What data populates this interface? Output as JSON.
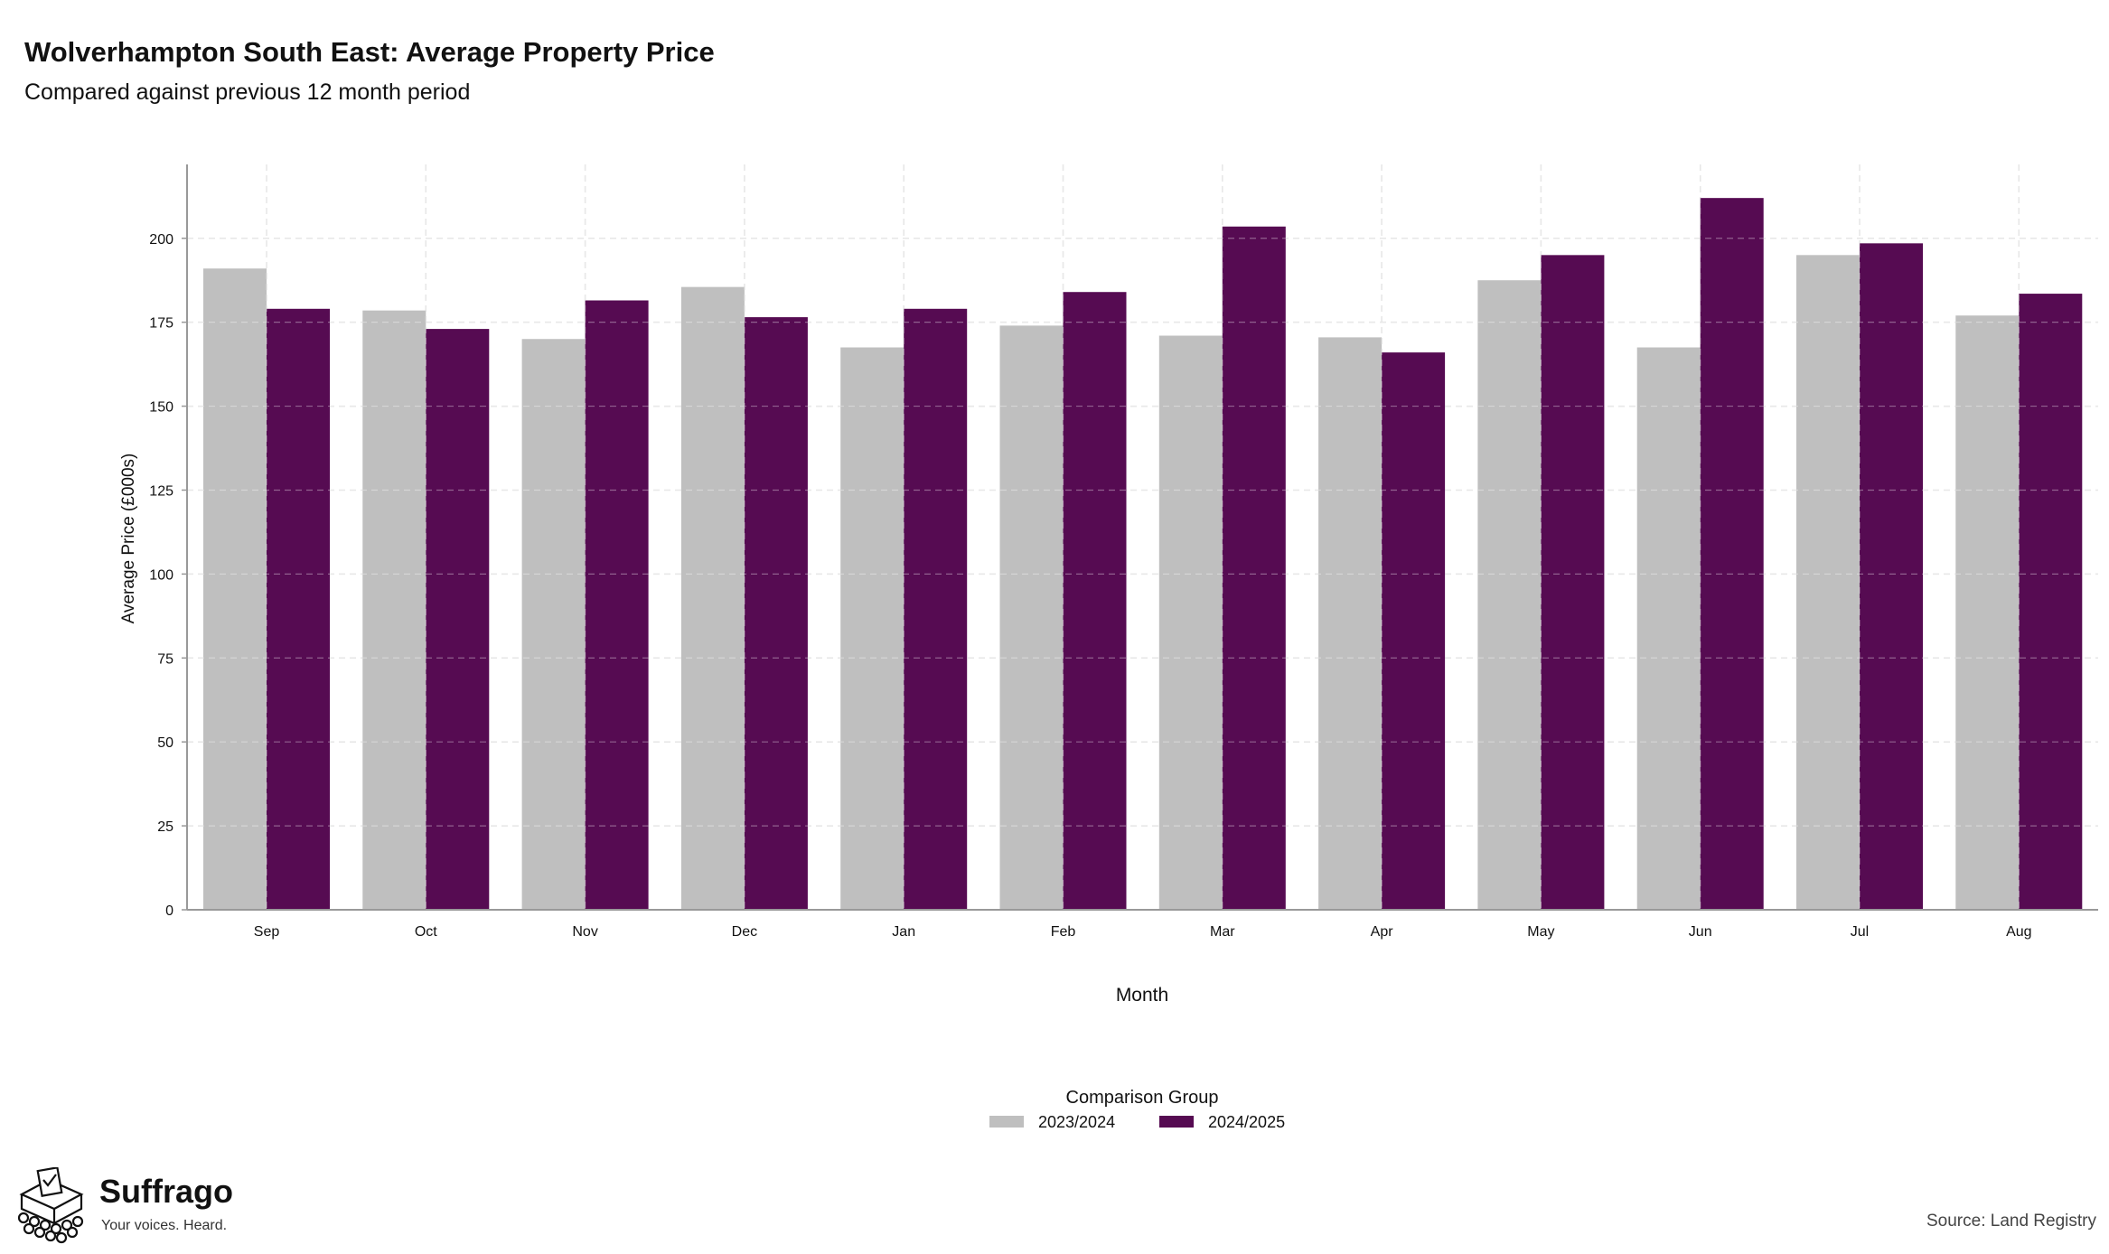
{
  "title": "Wolverhampton South East: Average Property Price",
  "subtitle": "Compared against previous 12 month period",
  "colors": {
    "series_2023": "#bfbfbf",
    "series_2024": "#560b52",
    "grid": "#dddddd",
    "axis": "#999999"
  },
  "chart_data": {
    "type": "bar",
    "categories": [
      "Sep",
      "Oct",
      "Nov",
      "Dec",
      "Jan",
      "Feb",
      "Mar",
      "Apr",
      "May",
      "Jun",
      "Jul",
      "Aug"
    ],
    "series": [
      {
        "name": "2023/2024",
        "values": [
          191,
          178.5,
          170,
          185.5,
          167.5,
          174,
          171,
          170.5,
          187.5,
          167.5,
          195,
          177
        ]
      },
      {
        "name": "2024/2025",
        "values": [
          179,
          173,
          181.5,
          176.5,
          179,
          184,
          203.5,
          166,
          195,
          212,
          198.5,
          183.5
        ]
      }
    ],
    "xlabel": "Month",
    "ylabel": "Average Price (£000s)",
    "ylim": [
      0,
      222
    ],
    "yticks": [
      0,
      25,
      50,
      75,
      100,
      125,
      150,
      175,
      200
    ],
    "grid": true,
    "legend": {
      "title": "Comparison Group",
      "placement": "bottom-center"
    }
  },
  "branding": {
    "name": "Suffrago",
    "tagline": "Your voices. Heard.",
    "icon": "ballot-box-crowd-icon"
  },
  "source": "Source: Land Registry"
}
